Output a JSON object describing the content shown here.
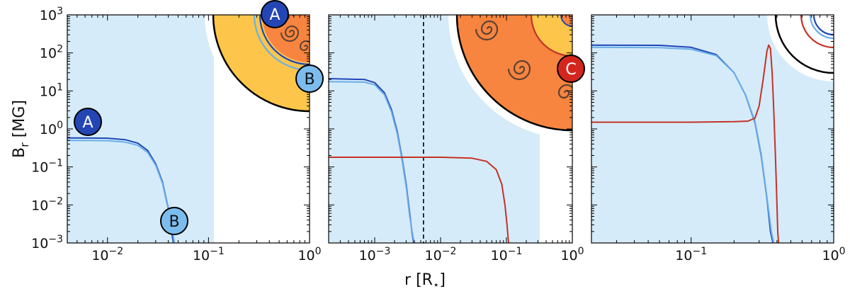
{
  "figure": {
    "ylabel": "B",
    "ylabel_sub": "r",
    "ylabel_unit": " [MG]",
    "xlabel": "r [R",
    "xlabel_star": "⋆",
    "xlabel_end": "]"
  },
  "colors": {
    "shade": "#d6ebf9",
    "A_line": "#1f47b8",
    "B_line": "#6aaee8",
    "C_line": "#c43226",
    "A_badge": "#2446b5",
    "B_badge": "#7cbdee",
    "C_badge": "#d3261e",
    "star_yellow": "#fdc64b",
    "star_orange": "#f7843f",
    "spiral": "#5c4233"
  },
  "badges": {
    "A": "A",
    "B": "B",
    "C": "C"
  },
  "chart_data": [
    {
      "type": "line",
      "x_scale": "log",
      "y_scale": "log",
      "xlim": [
        0.004,
        1.0
      ],
      "ylim": [
        0.001,
        1000
      ],
      "x_ticks": [
        {
          "base": "10",
          "exp": "−2",
          "value": 0.01
        },
        {
          "base": "10",
          "exp": "−1",
          "value": 0.1
        },
        {
          "base": "10",
          "exp": "0",
          "value": 1
        }
      ],
      "y_ticks": [
        {
          "base": "10",
          "exp": "−3",
          "value": 0.001
        },
        {
          "base": "10",
          "exp": "−2",
          "value": 0.01
        },
        {
          "base": "10",
          "exp": "−1",
          "value": 0.1
        },
        {
          "base": "10",
          "exp": "0",
          "value": 1
        },
        {
          "base": "10",
          "exp": "1",
          "value": 10
        },
        {
          "base": "10",
          "exp": "2",
          "value": 100
        },
        {
          "base": "10",
          "exp": "3",
          "value": 1000
        }
      ],
      "series": [
        {
          "name": "A",
          "color_key": "A_line",
          "x": [
            0.004,
            0.01,
            0.015,
            0.02,
            0.025,
            0.03,
            0.035,
            0.04,
            0.043,
            0.045
          ],
          "y": [
            0.58,
            0.57,
            0.52,
            0.42,
            0.27,
            0.12,
            0.04,
            0.008,
            0.002,
            0.001
          ]
        },
        {
          "name": "B",
          "color_key": "B_line",
          "x": [
            0.004,
            0.01,
            0.015,
            0.02,
            0.025,
            0.03,
            0.035,
            0.04,
            0.044,
            0.046
          ],
          "y": [
            0.5,
            0.49,
            0.45,
            0.37,
            0.24,
            0.11,
            0.037,
            0.0075,
            0.002,
            0.001
          ]
        }
      ]
    },
    {
      "type": "line",
      "x_scale": "log",
      "y_scale": "log",
      "xlim": [
        0.0002,
        1.0
      ],
      "ylim": [
        0.001,
        1000
      ],
      "vline": 0.0055,
      "x_ticks": [
        {
          "base": "10",
          "exp": "−3",
          "value": 0.001
        },
        {
          "base": "10",
          "exp": "−2",
          "value": 0.01
        },
        {
          "base": "10",
          "exp": "−1",
          "value": 0.1
        },
        {
          "base": "10",
          "exp": "0",
          "value": 1
        }
      ],
      "series": [
        {
          "name": "A",
          "color_key": "A_line",
          "x": [
            0.0002,
            0.0007,
            0.001,
            0.0014,
            0.0018,
            0.0022,
            0.0026,
            0.003,
            0.0034,
            0.0037,
            0.0039
          ],
          "y": [
            21,
            20,
            16.5,
            9,
            3.2,
            0.85,
            0.17,
            0.035,
            0.006,
            0.0018,
            0.001
          ]
        },
        {
          "name": "B",
          "color_key": "B_line",
          "x": [
            0.0002,
            0.0007,
            0.001,
            0.0014,
            0.0018,
            0.0022,
            0.0026,
            0.003,
            0.0034,
            0.0038,
            0.004
          ],
          "y": [
            17.5,
            17,
            14.5,
            8,
            2.8,
            0.75,
            0.15,
            0.03,
            0.005,
            0.0015,
            0.001
          ]
        },
        {
          "name": "C",
          "color_key": "C_line",
          "x": [
            0.0002,
            0.01,
            0.03,
            0.05,
            0.07,
            0.085,
            0.095,
            0.102,
            0.106,
            0.108
          ],
          "y": [
            0.18,
            0.18,
            0.17,
            0.14,
            0.085,
            0.035,
            0.01,
            0.003,
            0.0013,
            0.001
          ]
        }
      ]
    },
    {
      "type": "line",
      "x_scale": "log",
      "y_scale": "log",
      "xlim": [
        0.02,
        1.0
      ],
      "ylim": [
        0.001,
        1000
      ],
      "x_ticks": [
        {
          "base": "10",
          "exp": "−1",
          "value": 0.1
        },
        {
          "base": "10",
          "exp": "0",
          "value": 1
        }
      ],
      "series": [
        {
          "name": "A",
          "color_key": "A_line",
          "x": [
            0.02,
            0.06,
            0.1,
            0.15,
            0.2,
            0.24,
            0.28,
            0.31,
            0.34,
            0.36,
            0.375
          ],
          "y": [
            160,
            158,
            140,
            90,
            30,
            8,
            1.5,
            0.2,
            0.015,
            0.002,
            0.001
          ]
        },
        {
          "name": "B",
          "color_key": "B_line",
          "x": [
            0.02,
            0.06,
            0.1,
            0.15,
            0.2,
            0.24,
            0.28,
            0.31,
            0.34,
            0.365,
            0.38
          ],
          "y": [
            140,
            138,
            125,
            85,
            30,
            8,
            1.6,
            0.22,
            0.016,
            0.002,
            0.001
          ]
        },
        {
          "name": "C",
          "color_key": "C_line",
          "x": [
            0.02,
            0.1,
            0.2,
            0.25,
            0.28,
            0.3,
            0.32,
            0.34,
            0.35,
            0.36,
            0.37,
            0.38,
            0.39,
            0.4,
            0.405,
            0.41
          ],
          "y": [
            1.5,
            1.5,
            1.55,
            1.6,
            1.9,
            4,
            20,
            110,
            160,
            130,
            30,
            3,
            0.2,
            0.01,
            0.002,
            0.001
          ]
        }
      ]
    }
  ]
}
